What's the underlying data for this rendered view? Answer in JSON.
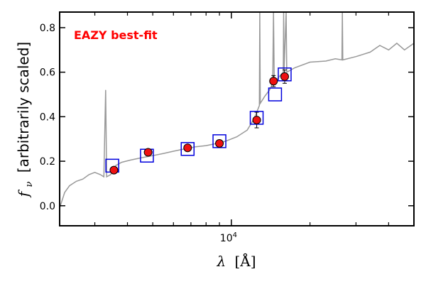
{
  "chart_data": {
    "type": "scatter",
    "annotation": "EAZY best-fit",
    "xlabel_math": "λ",
    "xlabel_unit": "[Å]",
    "ylabel_math": "f",
    "ylabel_sub": "ν",
    "ylabel_text": "[arbitrarily scaled]",
    "x_scale": "log",
    "xlim": [
      2200,
      50000
    ],
    "ylim": [
      -0.09,
      0.87
    ],
    "y_ticks": [
      0.0,
      0.2,
      0.4,
      0.6,
      0.8
    ],
    "y_tick_labels": [
      "0.0",
      "0.2",
      "0.4",
      "0.6",
      "0.8"
    ],
    "x_major_ticks": [
      10000
    ],
    "x_tick_labels": [
      "10^4"
    ],
    "x_minor_ticks": [
      3000,
      4000,
      5000,
      6000,
      7000,
      8000,
      9000,
      20000,
      30000,
      40000
    ],
    "grid": false,
    "colors": {
      "spectrum": "#999999",
      "observed": "#ee1111",
      "model_box": "#0000dd",
      "annotation": "#ff0000"
    },
    "observed": {
      "x": [
        3550,
        4800,
        6800,
        9000,
        12500,
        16000,
        14500
      ],
      "y": [
        0.16,
        0.24,
        0.26,
        0.28,
        0.385,
        0.58,
        0.56
      ],
      "yerr": [
        0.015,
        0.012,
        0.012,
        0.015,
        0.035,
        0.03,
        0.025
      ]
    },
    "model_photometry": {
      "x": [
        3500,
        4750,
        6800,
        9000,
        12500,
        14700,
        16000
      ],
      "y": [
        0.18,
        0.225,
        0.255,
        0.29,
        0.395,
        0.5,
        0.59
      ]
    },
    "spectrum": [
      [
        2200,
        -0.01
      ],
      [
        2300,
        0.06
      ],
      [
        2400,
        0.09
      ],
      [
        2550,
        0.11
      ],
      [
        2700,
        0.12
      ],
      [
        2850,
        0.14
      ],
      [
        3000,
        0.15
      ],
      [
        3150,
        0.14
      ],
      [
        3250,
        0.13
      ],
      [
        3300,
        0.52
      ],
      [
        3330,
        0.13
      ],
      [
        3450,
        0.14
      ],
      [
        3600,
        0.18
      ],
      [
        3800,
        0.195
      ],
      [
        4100,
        0.205
      ],
      [
        4500,
        0.215
      ],
      [
        5000,
        0.225
      ],
      [
        5500,
        0.235
      ],
      [
        6000,
        0.245
      ],
      [
        6600,
        0.255
      ],
      [
        7300,
        0.265
      ],
      [
        8000,
        0.27
      ],
      [
        8800,
        0.28
      ],
      [
        9500,
        0.29
      ],
      [
        10500,
        0.31
      ],
      [
        11500,
        0.34
      ],
      [
        12200,
        0.39
      ],
      [
        12800,
        0.45
      ],
      [
        12850,
        0.87
      ],
      [
        12900,
        0.46
      ],
      [
        13400,
        0.49
      ],
      [
        14000,
        0.52
      ],
      [
        14400,
        0.55
      ],
      [
        14500,
        0.87
      ],
      [
        14600,
        0.55
      ],
      [
        15000,
        0.57
      ],
      [
        15500,
        0.59
      ],
      [
        15800,
        0.6
      ],
      [
        15850,
        0.87
      ],
      [
        15900,
        0.6
      ],
      [
        16200,
        0.87
      ],
      [
        16300,
        0.6
      ],
      [
        17500,
        0.62
      ],
      [
        20000,
        0.645
      ],
      [
        23000,
        0.65
      ],
      [
        25000,
        0.66
      ],
      [
        26500,
        0.655
      ],
      [
        26600,
        0.87
      ],
      [
        26700,
        0.655
      ],
      [
        30000,
        0.67
      ],
      [
        34000,
        0.69
      ],
      [
        37000,
        0.72
      ],
      [
        40000,
        0.7
      ],
      [
        43000,
        0.73
      ],
      [
        46000,
        0.7
      ],
      [
        50000,
        0.73
      ]
    ]
  }
}
